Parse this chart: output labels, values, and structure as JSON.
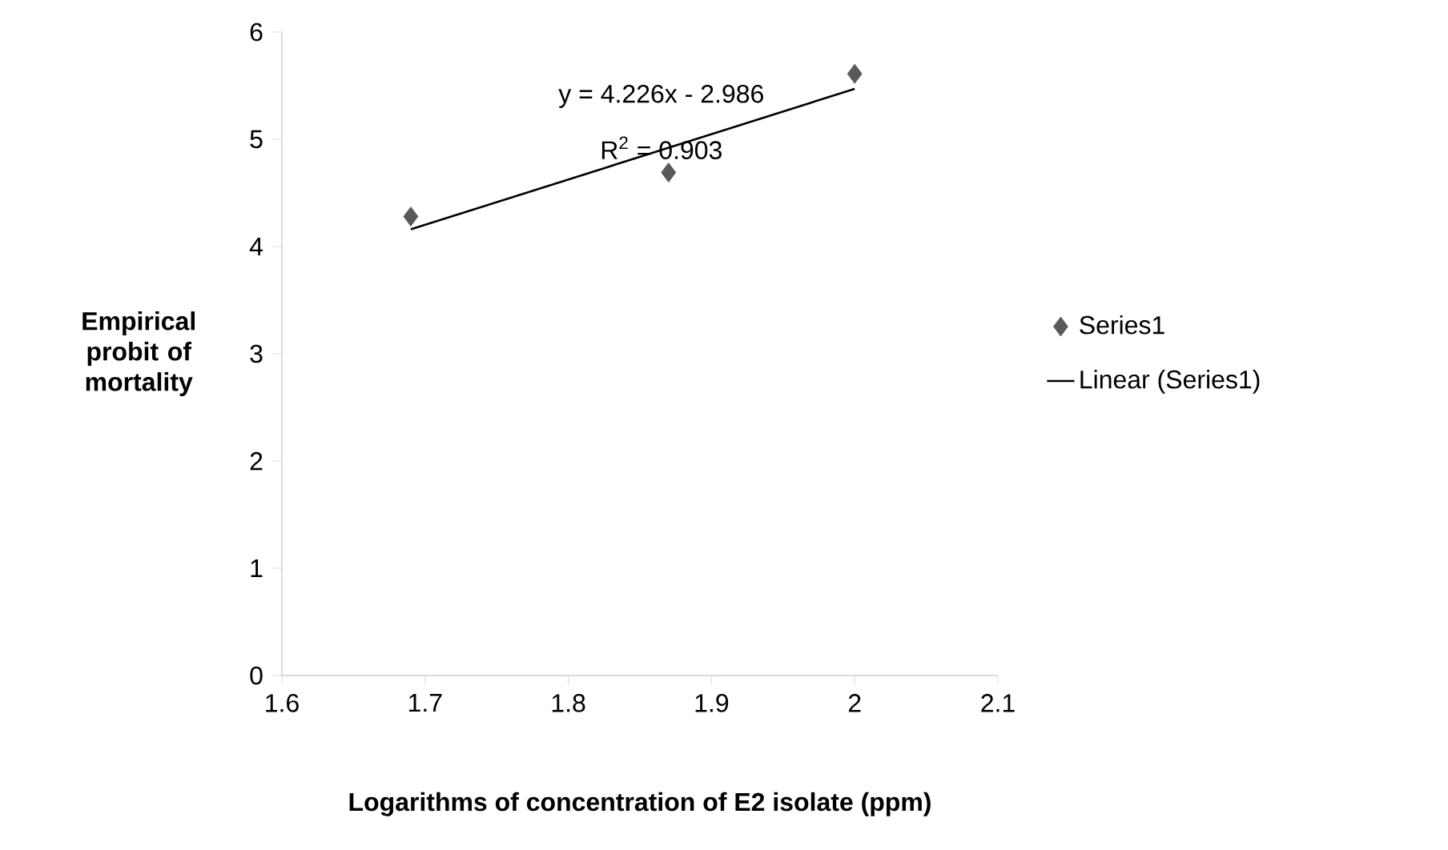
{
  "chart_data": {
    "type": "scatter",
    "xlabel": "Logarithms of concentration of E2 isolate (ppm)",
    "ylabel": "Empirical probit of mortality",
    "annotations": [
      "y = 4.226x - 2.986",
      "R$^{2}$ = 0.903"
    ],
    "xlim": [
      1.6,
      2.1
    ],
    "xticks": [
      1.6,
      1.7,
      1.8,
      1.9,
      2,
      2.1
    ],
    "ylim": [
      0,
      6
    ],
    "yticks": [
      0,
      1,
      2,
      3,
      4,
      5,
      6
    ],
    "grid": false,
    "legend": "right",
    "series": [
      {
        "name": "Series1",
        "marker": "diamond",
        "color": "#595959",
        "x": [
          1.69,
          1.87,
          2.0
        ],
        "values": [
          4.28,
          4.69,
          5.61
        ]
      },
      {
        "name": "Linear (Series1)",
        "type": "line",
        "marker": "none",
        "line_style": "solid",
        "color": "#000000",
        "x": [
          1.69,
          2.0
        ],
        "values": [
          4.16,
          5.47
        ]
      }
    ]
  }
}
